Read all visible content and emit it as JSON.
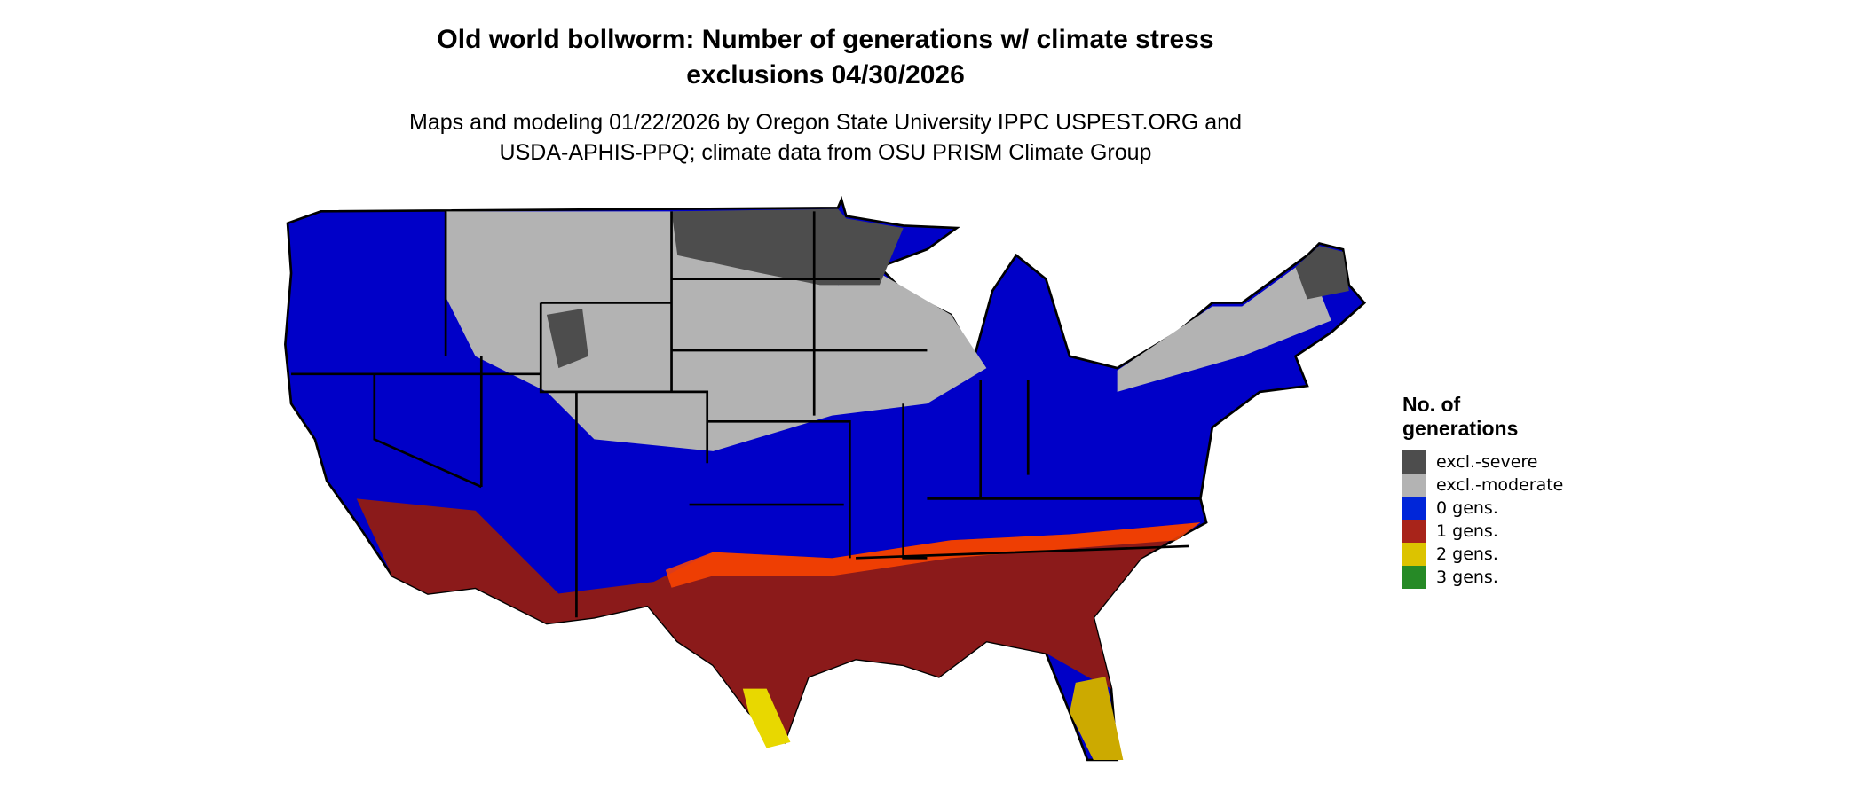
{
  "title_line1": "Old world bollworm: Number of generations w/ climate stress",
  "title_line2": "exclusions 04/30/2026",
  "subtitle_line1": "Maps and modeling 01/22/2026 by Oregon State University IPPC USPEST.ORG and",
  "subtitle_line2": "USDA-APHIS-PPQ; climate data from OSU PRISM Climate Group",
  "legend": {
    "title": "No. of generations",
    "items": [
      {
        "label": "excl.-severe",
        "color": "#4d4d4d"
      },
      {
        "label": "excl.-moderate",
        "color": "#b3b3b3"
      },
      {
        "label": "0 gens.",
        "color": "#0026d9"
      },
      {
        "label": "1 gens.",
        "color": "#a8241a"
      },
      {
        "label": "2 gens.",
        "color": "#dcc300"
      },
      {
        "label": "3 gens.",
        "color": "#268a26"
      }
    ]
  }
}
